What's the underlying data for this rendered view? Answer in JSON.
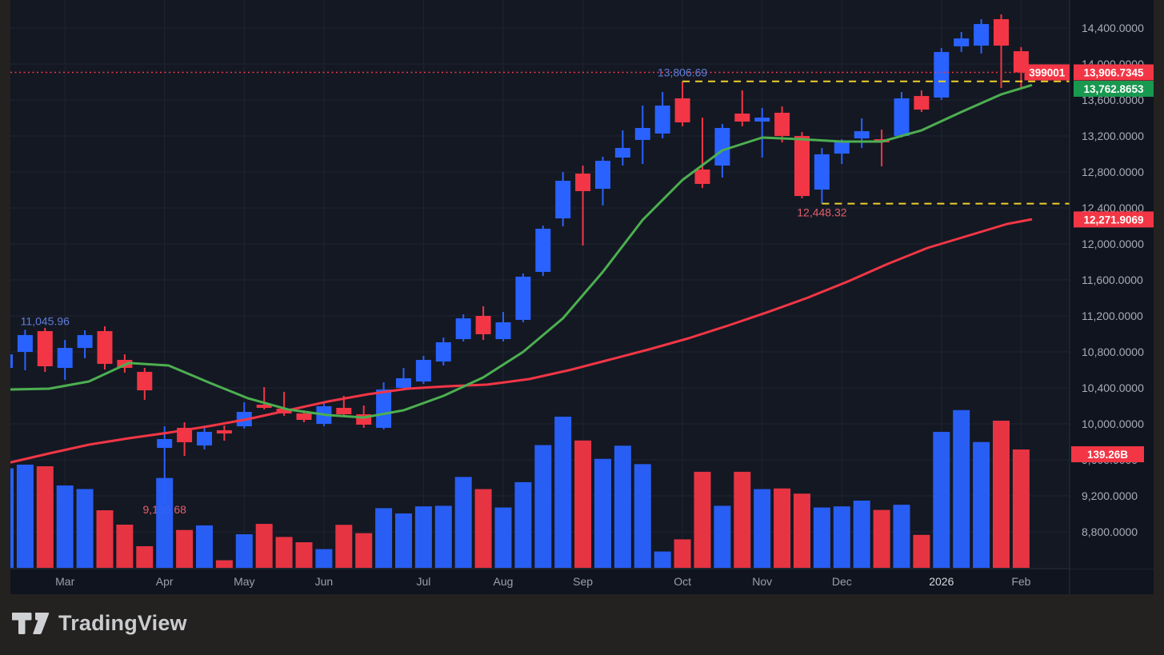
{
  "page": {
    "watermark": "TradingView"
  },
  "chart_data": {
    "type": "candlestick",
    "interval": "weekly",
    "x_axis": {
      "month_ticks": [
        {
          "label": "Mar",
          "index": 3
        },
        {
          "label": "Apr",
          "index": 8
        },
        {
          "label": "May",
          "index": 12
        },
        {
          "label": "Jun",
          "index": 16
        },
        {
          "label": "Jul",
          "index": 21
        },
        {
          "label": "Aug",
          "index": 25
        },
        {
          "label": "Sep",
          "index": 29
        },
        {
          "label": "Oct",
          "index": 34
        },
        {
          "label": "Nov",
          "index": 38
        },
        {
          "label": "Dec",
          "index": 42
        },
        {
          "label": "2026",
          "index": 47,
          "is_year": true
        },
        {
          "label": "Feb",
          "index": 51
        }
      ]
    },
    "y_axis": {
      "min": 8800,
      "max": 14400,
      "step": 400,
      "ticks": [
        {
          "value": 14400,
          "label": "14,400.0000"
        },
        {
          "value": 14000,
          "label": "14,000.0000"
        },
        {
          "value": 13600,
          "label": "13,600.0000"
        },
        {
          "value": 13200,
          "label": "13,200.0000"
        },
        {
          "value": 12800,
          "label": "12,800.0000"
        },
        {
          "value": 12400,
          "label": "12,400.0000"
        },
        {
          "value": 12000,
          "label": "12,000.0000"
        },
        {
          "value": 11600,
          "label": "11,600.0000"
        },
        {
          "value": 11200,
          "label": "11,200.0000"
        },
        {
          "value": 10800,
          "label": "10,800.0000"
        },
        {
          "value": 10400,
          "label": "10,400.0000"
        },
        {
          "value": 10000,
          "label": "10,000.0000"
        },
        {
          "value": 9600,
          "label": "9,600.0000"
        },
        {
          "value": 9200,
          "label": "9,200.0000"
        },
        {
          "value": 8800,
          "label": "8,800.0000"
        }
      ]
    },
    "candles": [
      [
        10622,
        10791,
        10596,
        10773
      ],
      [
        10800,
        11045.96,
        10596,
        10987
      ],
      [
        11031,
        11067,
        10578,
        10640
      ],
      [
        10622,
        10933,
        10489,
        10844
      ],
      [
        10844,
        11040,
        10729,
        10987
      ],
      [
        11031,
        11084,
        10604,
        10667
      ],
      [
        10711,
        10773,
        10569,
        10622
      ],
      [
        10578,
        10622,
        10267,
        10373
      ],
      [
        9733,
        9973,
        9136.68,
        9831
      ],
      [
        9956,
        10018,
        9644,
        9796
      ],
      [
        9760,
        9982,
        9716,
        9911
      ],
      [
        9929,
        9982,
        9813,
        9893
      ],
      [
        9973,
        10240,
        9947,
        10133
      ],
      [
        10213,
        10409,
        10160,
        10178
      ],
      [
        10169,
        10356,
        10089,
        10116
      ],
      [
        10116,
        10151,
        10018,
        10044
      ],
      [
        10000,
        10231,
        9973,
        10196
      ],
      [
        10178,
        10311,
        10080,
        10107
      ],
      [
        10107,
        10204,
        9956,
        9991
      ],
      [
        9956,
        10462,
        9938,
        10382
      ],
      [
        10400,
        10622,
        10373,
        10507
      ],
      [
        10471,
        10756,
        10444,
        10711
      ],
      [
        10693,
        10960,
        10649,
        10907
      ],
      [
        10942,
        11218,
        10916,
        11173
      ],
      [
        11200,
        11307,
        10933,
        10996
      ],
      [
        10942,
        11244,
        10916,
        11129
      ],
      [
        11156,
        11671,
        11129,
        11636
      ],
      [
        11689,
        12204,
        11644,
        12169
      ],
      [
        12284,
        12800,
        12196,
        12702
      ],
      [
        12782,
        12871,
        11982,
        12587
      ],
      [
        12613,
        12969,
        12427,
        12924
      ],
      [
        12960,
        13262,
        12871,
        13067
      ],
      [
        13156,
        13538,
        12889,
        13289
      ],
      [
        13227,
        13689,
        13173,
        13538
      ],
      [
        13618,
        13806.69,
        13307,
        13351
      ],
      [
        12827,
        13404,
        12622,
        12667
      ],
      [
        12871,
        13333,
        12738,
        13289
      ],
      [
        13449,
        13707,
        13307,
        13360
      ],
      [
        13360,
        13511,
        12960,
        13404
      ],
      [
        13458,
        13529,
        13129,
        13200
      ],
      [
        13200,
        13244,
        12507,
        12533
      ],
      [
        12604,
        13067,
        12448.32,
        12996
      ],
      [
        13004,
        13164,
        12889,
        13129
      ],
      [
        13173,
        13396,
        13067,
        13253
      ],
      [
        13164,
        13271,
        12862,
        13129
      ],
      [
        13200,
        13689,
        13182,
        13618
      ],
      [
        13644,
        13707,
        13467,
        13493
      ],
      [
        13627,
        14178,
        13600,
        14133
      ],
      [
        14196,
        14356,
        14133,
        14284
      ],
      [
        14204,
        14498,
        14116,
        14444
      ],
      [
        14498,
        14551,
        13733,
        14204
      ],
      [
        14142,
        14187,
        13742,
        13906.7345
      ]
    ],
    "volumes_billions": [
      117.1,
      121.4,
      119.5,
      96.9,
      92.7,
      67.7,
      50.8,
      25.4,
      105.7,
      44.5,
      49.9,
      8.9,
      39.5,
      51.7,
      36.3,
      30.1,
      22.0,
      50.6,
      40.8,
      70.2,
      64.0,
      72.3,
      73.0,
      106.9,
      92.6,
      71.0,
      100.8,
      144.4,
      177.8,
      149.8,
      128.2,
      143.7,
      122.0,
      19.2,
      33.5,
      113.0,
      73.0,
      113.0,
      92.6,
      93.4,
      87.3,
      71.0,
      72.3,
      79.1,
      68.1,
      74.2,
      38.8,
      160.0,
      185.6,
      148.0,
      173.1,
      139.26
    ],
    "volume_axis": {
      "current_label": "139.26B",
      "current_value_billions": 139.26
    },
    "ma_fast": {
      "end_value": 13762.8653,
      "end_label": "13,762.8653",
      "points": [
        [
          0.3,
          10382
        ],
        [
          2.2,
          10391
        ],
        [
          4.2,
          10471
        ],
        [
          6.2,
          10676
        ],
        [
          8.2,
          10649
        ],
        [
          10.2,
          10462
        ],
        [
          12.2,
          10284
        ],
        [
          14.2,
          10160
        ],
        [
          16.2,
          10098
        ],
        [
          18,
          10071
        ],
        [
          20,
          10151
        ],
        [
          22,
          10311
        ],
        [
          24,
          10516
        ],
        [
          26,
          10800
        ],
        [
          28,
          11173
        ],
        [
          30,
          11689
        ],
        [
          32,
          12267
        ],
        [
          34,
          12711
        ],
        [
          36,
          13040
        ],
        [
          38,
          13182
        ],
        [
          40,
          13164
        ],
        [
          42,
          13138
        ],
        [
          44,
          13138
        ],
        [
          46,
          13262
        ],
        [
          48,
          13467
        ],
        [
          50,
          13662
        ],
        [
          51.5,
          13762.87
        ]
      ]
    },
    "ma_slow": {
      "end_value": 12271.9069,
      "end_label": "12,271.9069",
      "points": [
        [
          0.3,
          9573
        ],
        [
          2.2,
          9671
        ],
        [
          4.2,
          9769
        ],
        [
          6.2,
          9840
        ],
        [
          8.2,
          9902
        ],
        [
          10.2,
          9973
        ],
        [
          12.2,
          10053
        ],
        [
          14.2,
          10151
        ],
        [
          16.2,
          10249
        ],
        [
          18.2,
          10329
        ],
        [
          20.2,
          10391
        ],
        [
          22.2,
          10418
        ],
        [
          24.2,
          10436
        ],
        [
          26.3,
          10498
        ],
        [
          28.3,
          10596
        ],
        [
          30.3,
          10711
        ],
        [
          32.3,
          10827
        ],
        [
          34.3,
          10951
        ],
        [
          36.3,
          11093
        ],
        [
          38.3,
          11244
        ],
        [
          40.3,
          11404
        ],
        [
          42.3,
          11582
        ],
        [
          44.3,
          11778
        ],
        [
          46.3,
          11956
        ],
        [
          48.3,
          12089
        ],
        [
          50.3,
          12222
        ],
        [
          51.5,
          12271.91
        ]
      ]
    },
    "last_price": {
      "value": 13906.7345,
      "label": "13,906.7345",
      "countdown_label": "399001"
    },
    "levels": [
      {
        "value": 13806.69,
        "label": "13,806.69",
        "from_index": 34,
        "label_placement": "above",
        "label_color_role": "blue"
      },
      {
        "value": 12448.32,
        "label": "12,448.32",
        "from_index": 41,
        "label_placement": "below",
        "label_color_role": "red"
      }
    ],
    "point_labels": [
      {
        "value": 11045.96,
        "label": "11,045.96",
        "index": 2,
        "color_role": "blue",
        "placement": "above",
        "behind_bars": false
      },
      {
        "value": 9136.68,
        "label": "9,136.68",
        "index": 8,
        "color_role": "red",
        "placement": "below",
        "behind_bars": true
      }
    ],
    "colors": {
      "up": "#2962ff",
      "down": "#f23645",
      "ma_fast": "#4caf50",
      "ma_slow": "#f23645",
      "chart_bg": "#141823",
      "axis_bg": "#10141e",
      "grid": "#1f2430",
      "separator": "#2a3040",
      "axis_text": "#a8adb8",
      "month_text": "#9aa0ab",
      "year_text": "#d6d9e0",
      "label_blue": "#5f7ed8",
      "label_red": "#e0606c",
      "level_yellow": "#f0d02a",
      "badge_green": "#199850",
      "badge_red": "#f23645",
      "badge_text": "#ffffff",
      "page_bg": "#242220",
      "watermark_text": "#cbcccf"
    }
  }
}
